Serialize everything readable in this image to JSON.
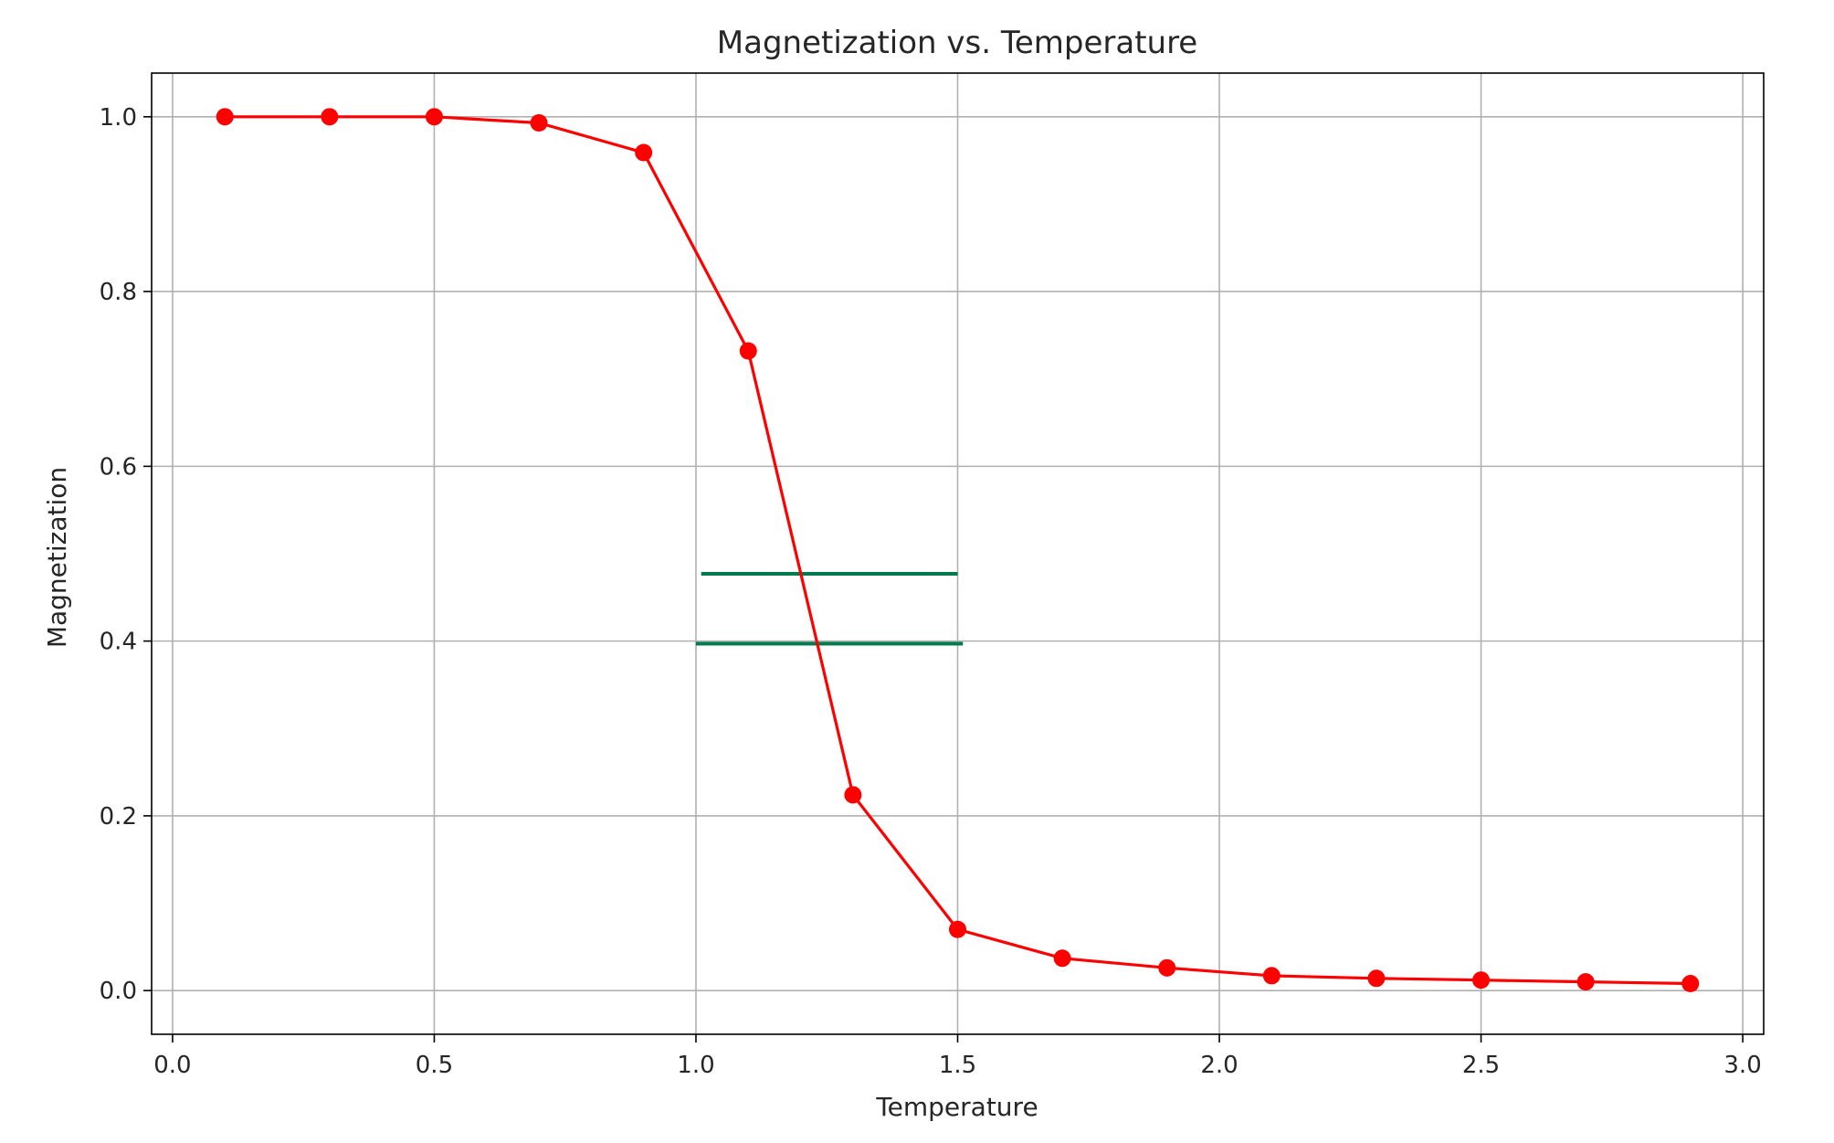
{
  "chart_data": {
    "type": "line",
    "title": "Magnetization vs. Temperature",
    "xlabel": "Temperature",
    "ylabel": "Magnetization",
    "xlim": [
      -0.04,
      3.04
    ],
    "ylim": [
      -0.05,
      1.05
    ],
    "xticks": [
      0.0,
      0.5,
      1.0,
      1.5,
      2.0,
      2.5,
      3.0
    ],
    "xtick_labels": [
      "0.0",
      "0.5",
      "1.0",
      "1.5",
      "2.0",
      "2.5",
      "3.0"
    ],
    "yticks": [
      0.0,
      0.2,
      0.4,
      0.6,
      0.8,
      1.0
    ],
    "ytick_labels": [
      "0.0",
      "0.2",
      "0.4",
      "0.6",
      "0.8",
      "1.0"
    ],
    "grid": true,
    "legend": "none",
    "series": [
      {
        "color": "#ff0000",
        "marker": "circle",
        "x": [
          0.1,
          0.3,
          0.5,
          0.7,
          0.9,
          1.1,
          1.3,
          1.5,
          1.7,
          1.9,
          2.1,
          2.3,
          2.5,
          2.7,
          2.9
        ],
        "y": [
          1.0,
          1.0,
          1.0,
          0.993,
          0.959,
          0.732,
          0.224,
          0.07,
          0.037,
          0.026,
          0.017,
          0.014,
          0.012,
          0.01,
          0.008
        ]
      }
    ],
    "annotations": [
      {
        "type": "hline",
        "y": 0.477,
        "x_start": 1.01,
        "x_end": 1.5,
        "color": "#007a4d"
      },
      {
        "type": "hline",
        "y": 0.397,
        "x_start": 1.0,
        "x_end": 1.51,
        "color": "#007a4d"
      }
    ]
  }
}
